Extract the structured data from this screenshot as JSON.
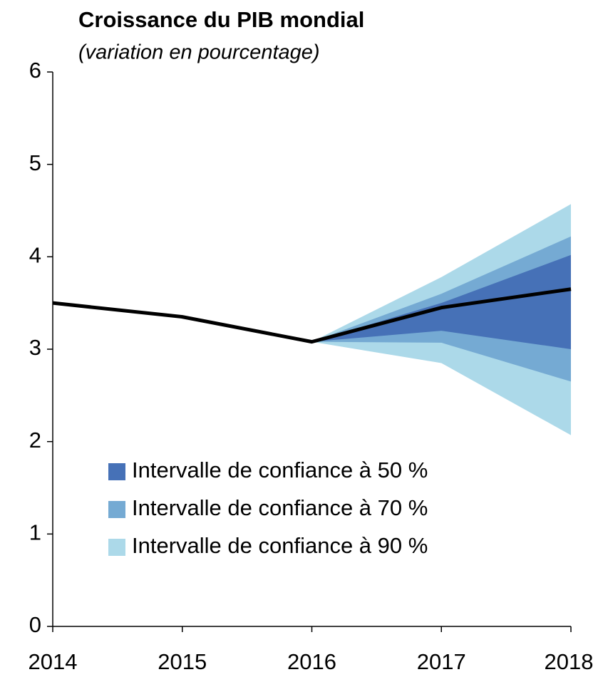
{
  "chart_data": {
    "type": "fan",
    "title": "Croissance du PIB mondial",
    "subtitle": "(variation en pourcentage)",
    "x": [
      2014,
      2015,
      2016,
      2017,
      2018
    ],
    "xlim": [
      2014,
      2018
    ],
    "xticks": [
      2014,
      2015,
      2016,
      2017,
      2018
    ],
    "ylim": [
      0,
      6
    ],
    "yticks": [
      0,
      1,
      2,
      3,
      4,
      5,
      6
    ],
    "line": {
      "color": "#000000",
      "values": [
        3.5,
        3.35,
        3.08,
        3.45,
        3.65
      ]
    },
    "bands": [
      {
        "name": "Intervalle de confiance à 90 %",
        "color": "#acd9e9",
        "lower": [
          null,
          null,
          3.08,
          2.85,
          2.07
        ],
        "upper": [
          null,
          null,
          3.08,
          3.78,
          4.57
        ]
      },
      {
        "name": "Intervalle de confiance à 70 %",
        "color": "#75aad3",
        "lower": [
          null,
          null,
          3.08,
          3.07,
          2.65
        ],
        "upper": [
          null,
          null,
          3.08,
          3.6,
          4.22
        ]
      },
      {
        "name": "Intervalle de confiance à 50 %",
        "color": "#4671b7",
        "lower": [
          null,
          null,
          3.08,
          3.2,
          3.0
        ],
        "upper": [
          null,
          null,
          3.08,
          3.5,
          4.02
        ]
      }
    ]
  }
}
